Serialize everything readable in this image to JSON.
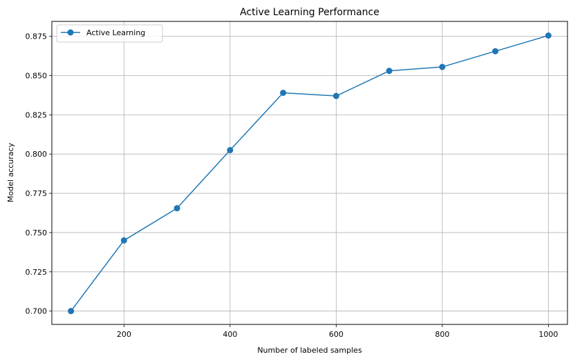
{
  "chart_data": {
    "type": "line",
    "title": "Active Learning Performance",
    "xlabel": "Number of labeled samples",
    "ylabel": "Model accuracy",
    "xlim": [
      64,
      1036
    ],
    "ylim": [
      0.6915,
      0.8845
    ],
    "xticks": [
      200,
      400,
      600,
      800,
      1000
    ],
    "yticks": [
      0.7,
      0.725,
      0.75,
      0.775,
      0.8,
      0.825,
      0.85,
      0.875
    ],
    "ytick_labels": [
      "0.700",
      "0.725",
      "0.750",
      "0.775",
      "0.800",
      "0.825",
      "0.850",
      "0.875"
    ],
    "grid": true,
    "legend_position": "top-left",
    "series": [
      {
        "name": "Active Learning",
        "color": "#1f77b4",
        "marker": "circle",
        "x": [
          100,
          200,
          300,
          400,
          500,
          600,
          700,
          800,
          900,
          1000
        ],
        "y": [
          0.7,
          0.745,
          0.7655,
          0.8025,
          0.839,
          0.837,
          0.853,
          0.8555,
          0.8655,
          0.8755
        ]
      }
    ]
  }
}
